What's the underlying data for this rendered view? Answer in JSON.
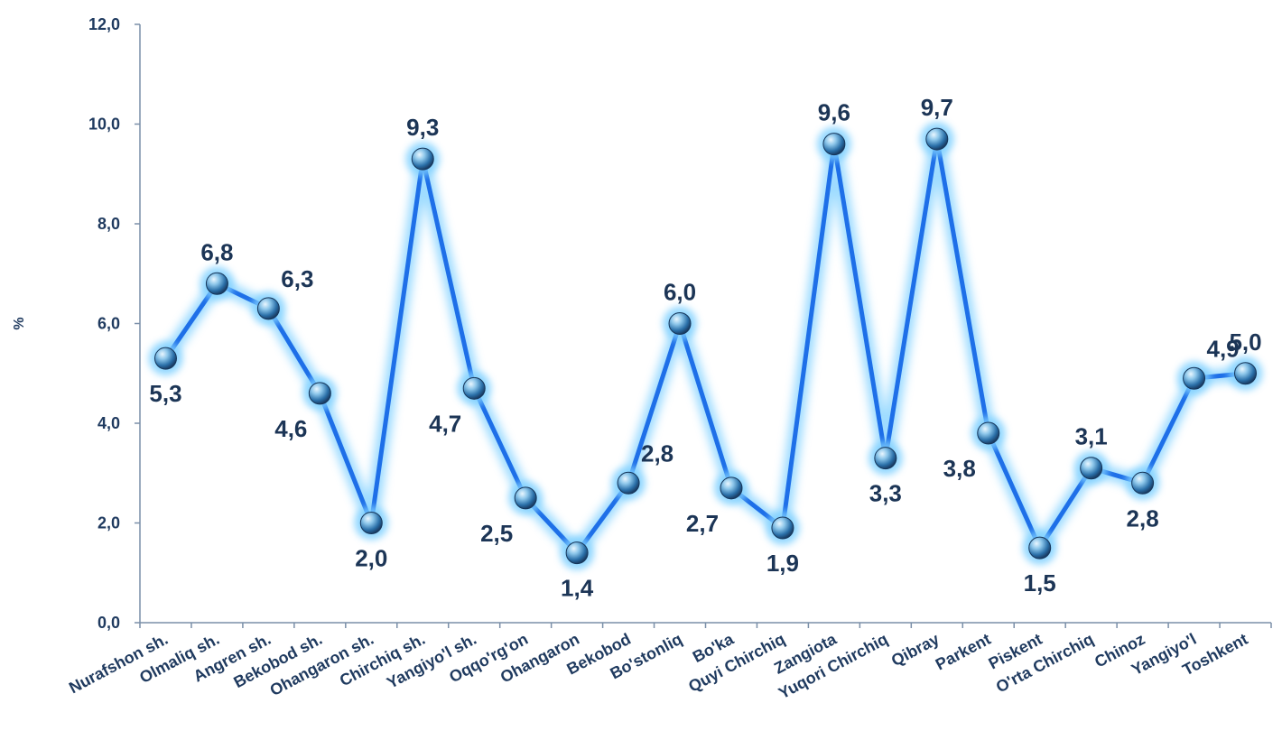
{
  "chart_data": {
    "type": "line",
    "title": "",
    "xlabel": "",
    "ylabel": "%",
    "ylim": [
      0,
      12
    ],
    "yticks": [
      "0,0",
      "2,0",
      "4,0",
      "6,0",
      "8,0",
      "10,0",
      "12,0"
    ],
    "grid": false,
    "categories": [
      "Nurafshon sh.",
      "Olmaliq sh.",
      "Angren sh.",
      "Bekobod sh.",
      "Ohangaron sh.",
      "Chirchiq sh.",
      "Yangiyo'l sh.",
      "Oqqo'rg'on",
      "Ohangaron",
      "Bekobod",
      "Bo'stonliq",
      "Bo'ka",
      "Quyi Chirchiq",
      "Zangiota",
      "Yuqori Chirchiq",
      "Qibray",
      "Parkent",
      "Piskent",
      "O'rta Chirchiq",
      "Chinoz",
      "Yangiyo'l",
      "Toshkent"
    ],
    "values": [
      5.3,
      6.8,
      6.3,
      4.6,
      2.0,
      9.3,
      4.7,
      2.5,
      1.4,
      2.8,
      6.0,
      2.7,
      1.9,
      9.6,
      3.3,
      9.7,
      3.8,
      1.5,
      3.1,
      2.8,
      4.9,
      5.0
    ],
    "data_labels": [
      "5,3",
      "6,8",
      "6,3",
      "4,6",
      "2,0",
      "9,3",
      "4,7",
      "2,5",
      "1,4",
      "2,8",
      "6,0",
      "2,7",
      "1,9",
      "9,6",
      "3,3",
      "9,7",
      "3,8",
      "1,5",
      "3,1",
      "2,8",
      "4,9",
      "5,0"
    ],
    "colors": {
      "line": "#1e6fe8",
      "glow": "#7fd0ff",
      "marker": "#4a9fd8",
      "axis": "#7a8fa8",
      "text": "#1f3a5f"
    }
  }
}
